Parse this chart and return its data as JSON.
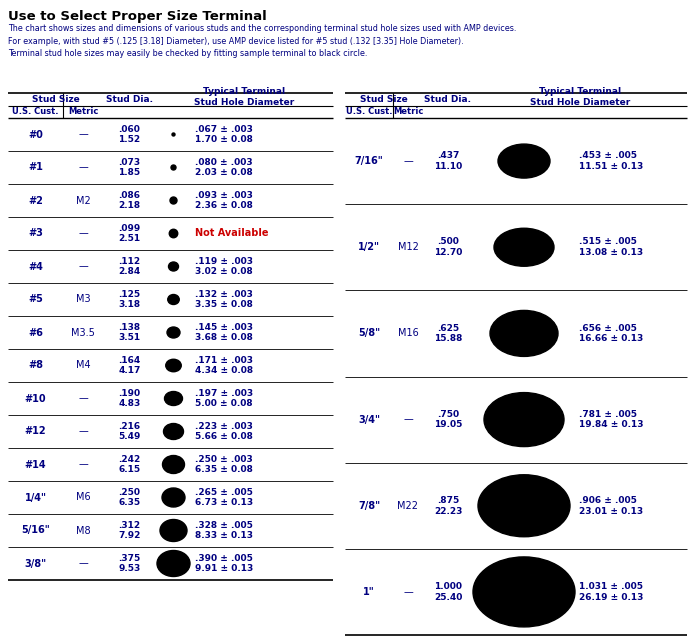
{
  "title": "Use to Select Proper Size Terminal",
  "subtitle": "The chart shows sizes and dimensions of various studs and the corresponding terminal stud hole sizes used with AMP devices.\nFor example, with stud #5 (.125 [3.18] Diameter), use AMP device listed for #5 stud (.132 [3.35] Hole Diameter).\nTerminal stud hole sizes may easily be checked by fitting sample terminal to black circle.",
  "bg_color": "#ffffff",
  "title_color": "#000000",
  "text_color": "#000080",
  "left_rows": [
    {
      "us": "#0",
      "metric": "—",
      "dia": ".060\n1.52",
      "hole": ".067 ± .003\n1.70 ± 0.08",
      "cw": 3.0,
      "ch": 3.0,
      "not_avail": false
    },
    {
      "us": "#1",
      "metric": "—",
      "dia": ".073\n1.85",
      "hole": ".080 ± .003\n2.03 ± 0.08",
      "cw": 5.0,
      "ch": 5.0,
      "not_avail": false
    },
    {
      "us": "#2",
      "metric": "M2",
      "dia": ".086\n2.18",
      "hole": ".093 ± .003\n2.36 ± 0.08",
      "cw": 7.0,
      "ch": 7.0,
      "not_avail": false
    },
    {
      "us": "#3",
      "metric": "—",
      "dia": ".099\n2.51",
      "hole": "Not Available",
      "cw": 8.5,
      "ch": 8.5,
      "not_avail": true
    },
    {
      "us": "#4",
      "metric": "—",
      "dia": ".112\n2.84",
      "hole": ".119 ± .003\n3.02 ± 0.08",
      "cw": 10.0,
      "ch": 9.0,
      "not_avail": false
    },
    {
      "us": "#5",
      "metric": "M3",
      "dia": ".125\n3.18",
      "hole": ".132 ± .003\n3.35 ± 0.08",
      "cw": 11.5,
      "ch": 10.0,
      "not_avail": false
    },
    {
      "us": "#6",
      "metric": "M3.5",
      "dia": ".138\n3.51",
      "hole": ".145 ± .003\n3.68 ± 0.08",
      "cw": 13.0,
      "ch": 11.0,
      "not_avail": false
    },
    {
      "us": "#8",
      "metric": "M4",
      "dia": ".164\n4.17",
      "hole": ".171 ± .003\n4.34 ± 0.08",
      "cw": 15.5,
      "ch": 12.5,
      "not_avail": false
    },
    {
      "us": "#10",
      "metric": "—",
      "dia": ".190\n4.83",
      "hole": ".197 ± .003\n5.00 ± 0.08",
      "cw": 18.0,
      "ch": 14.0,
      "not_avail": false
    },
    {
      "us": "#12",
      "metric": "—",
      "dia": ".216\n5.49",
      "hole": ".223 ± .003\n5.66 ± 0.08",
      "cw": 20.0,
      "ch": 16.0,
      "not_avail": false
    },
    {
      "us": "#14",
      "metric": "—",
      "dia": ".242\n6.15",
      "hole": ".250 ± .003\n6.35 ± 0.08",
      "cw": 22.0,
      "ch": 18.0,
      "not_avail": false
    },
    {
      "us": "1/4\"",
      "metric": "M6",
      "dia": ".250\n6.35",
      "hole": ".265 ± .005\n6.73 ± 0.13",
      "cw": 23.0,
      "ch": 19.0,
      "not_avail": false
    },
    {
      "us": "5/16\"",
      "metric": "M8",
      "dia": ".312\n7.92",
      "hole": ".328 ± .005\n8.33 ± 0.13",
      "cw": 27.0,
      "ch": 22.0,
      "not_avail": false
    },
    {
      "us": "3/8\"",
      "metric": "—",
      "dia": ".375\n9.53",
      "hole": ".390 ± .005\n9.91 ± 0.13",
      "cw": 33.0,
      "ch": 26.0,
      "not_avail": false
    }
  ],
  "right_rows": [
    {
      "us": "7/16\"",
      "metric": "—",
      "dia": ".437\n11.10",
      "hole": ".453 ± .005\n11.51 ± 0.13",
      "cw": 52.0,
      "ch": 34.0
    },
    {
      "us": "1/2\"",
      "metric": "M12",
      "dia": ".500\n12.70",
      "hole": ".515 ± .005\n13.08 ± 0.13",
      "cw": 60.0,
      "ch": 38.0
    },
    {
      "us": "5/8\"",
      "metric": "M16",
      "dia": ".625\n15.88",
      "hole": ".656 ± .005\n16.66 ± 0.13",
      "cw": 68.0,
      "ch": 46.0
    },
    {
      "us": "3/4\"",
      "metric": "—",
      "dia": ".750\n19.05",
      "hole": ".781 ± .005\n19.84 ± 0.13",
      "cw": 80.0,
      "ch": 54.0
    },
    {
      "us": "7/8\"",
      "metric": "M22",
      "dia": ".875\n22.23",
      "hole": ".906 ± .005\n23.01 ± 0.13",
      "cw": 92.0,
      "ch": 62.0
    },
    {
      "us": "1\"",
      "metric": "—",
      "dia": "1.000\n25.40",
      "hole": "1.031 ± .005\n26.19 ± 0.13",
      "cw": 102.0,
      "ch": 70.0
    }
  ]
}
